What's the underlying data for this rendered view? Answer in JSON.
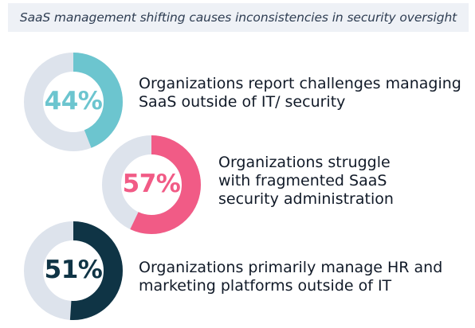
{
  "header": {
    "text": "SaaS management shifting causes inconsistencies in security oversight"
  },
  "chart_data": {
    "type": "donut",
    "items": [
      {
        "label": "44%",
        "value": 44,
        "color": "#6cc5cf",
        "track_color": "#dde3ec",
        "description": "Organizations report challenges managing\nSaaS outside of IT/ security"
      },
      {
        "label": "57%",
        "value": 57,
        "color": "#f15b86",
        "track_color": "#dde3ec",
        "description": "Organizations struggle\nwith fragmented SaaS\nsecurity administration"
      },
      {
        "label": "51%",
        "value": 51,
        "color": "#0f3445",
        "track_color": "#dde3ec",
        "description": "Organizations primarily manage HR and\nmarketing platforms outside of IT"
      }
    ]
  }
}
